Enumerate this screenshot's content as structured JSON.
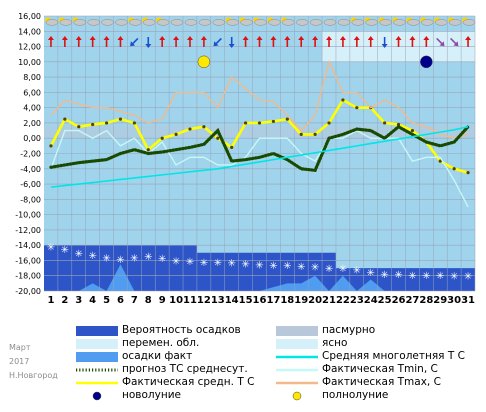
{
  "side_labels": {
    "month": "Март",
    "year": "2017",
    "city": "Н.Новгород"
  },
  "colors": {
    "plot_bg": "#9fd4ec",
    "sky_light": "#d6f0fa",
    "cloud": "#b8c8da",
    "precip_prob": "#2d55c8",
    "precip_fact": "#4f9cf0",
    "mean_line": "#00e6e6",
    "tmin_fact": "#c8f7f7",
    "tmax_fact": "#f2b98c",
    "avg_fact": "#ffff00",
    "forecast": "#4e9a06",
    "new_moon": "#00008b",
    "full_moon": "#ffe800",
    "wind_red": "#e01010",
    "wind_blue": "#1c4fd0",
    "wind_purple": "#8e4aa8"
  },
  "chart_data": {
    "type": "line",
    "x": [
      1,
      2,
      3,
      4,
      5,
      6,
      7,
      8,
      9,
      10,
      11,
      12,
      13,
      14,
      15,
      16,
      17,
      18,
      19,
      20,
      21,
      22,
      23,
      24,
      25,
      26,
      27,
      28,
      29,
      30,
      31
    ],
    "ylim": [
      -20,
      16
    ],
    "yticks": [
      "16,00",
      "14,00",
      "12,00",
      "10,00",
      "8,00",
      "6,00",
      "4,00",
      "2,00",
      "0,00",
      "-2,00",
      "-4,00",
      "-6,00",
      "-8,00",
      "-10,00",
      "-12,00",
      "-14,00",
      "-16,00",
      "-18,00",
      "-20,00"
    ],
    "series": [
      {
        "name": "Фактическая средн. Т С",
        "key": "avg_fact",
        "values": [
          -1.0,
          2.5,
          1.5,
          1.8,
          2.0,
          2.5,
          2.0,
          -1.5,
          0.0,
          0.5,
          1.2,
          1.5,
          0.0,
          -1.2,
          2.0,
          2.0,
          2.2,
          2.5,
          0.5,
          0.5,
          2.0,
          5.0,
          4.0,
          4.0,
          2.0,
          1.8,
          1.0,
          -0.5,
          -3.0,
          -4.0,
          -4.5
        ]
      },
      {
        "name": "Фактическая Tmax, C",
        "key": "tmax_fact",
        "values": [
          3.0,
          5.0,
          4.5,
          4.0,
          4.0,
          3.5,
          3.0,
          2.0,
          2.5,
          6.0,
          6.0,
          6.0,
          4.0,
          8.0,
          6.5,
          5.0,
          4.8,
          3.0,
          1.0,
          3.0,
          10.0,
          6.0,
          6.0,
          4.0,
          5.0,
          4.0,
          2.0,
          1.5,
          0.5,
          0.0,
          0.5
        ]
      },
      {
        "name": "Фактическая Tmin, C",
        "key": "tmin_fact",
        "values": [
          -4.0,
          1.0,
          1.0,
          0.0,
          1.0,
          -1.0,
          0.0,
          -2.0,
          -0.5,
          -3.5,
          -2.5,
          -2.5,
          -3.5,
          -3.5,
          -2.5,
          0.0,
          0.0,
          0.0,
          -2.0,
          -3.0,
          0.0,
          0.0,
          1.0,
          0.0,
          0.0,
          0.0,
          -3.0,
          -2.5,
          -2.5,
          -5.5,
          -9.0
        ]
      },
      {
        "name": "прогноз ТС среднесут.",
        "key": "forecast",
        "values": [
          -3.8,
          -3.5,
          -3.2,
          -3.0,
          -2.8,
          -2.0,
          -1.5,
          -2.0,
          -1.8,
          -1.5,
          -1.2,
          -0.8,
          1.0,
          -3.0,
          -2.8,
          -2.5,
          -2.0,
          -2.8,
          -4.0,
          -4.2,
          0.0,
          0.5,
          1.2,
          1.0,
          0.0,
          1.5,
          0.5,
          -0.5,
          -1.0,
          -0.5,
          1.5
        ]
      },
      {
        "name": "Средняя многолетняя Т С",
        "key": "mean_line",
        "values": [
          -6.4,
          -6.2,
          -6.0,
          -5.8,
          -5.6,
          -5.4,
          -5.2,
          -5.0,
          -4.8,
          -4.6,
          -4.4,
          -4.2,
          -4.0,
          -3.7,
          -3.4,
          -3.1,
          -2.8,
          -2.5,
          -2.2,
          -1.9,
          -1.6,
          -1.3,
          -1.0,
          -0.7,
          -0.4,
          -0.1,
          0.2,
          0.5,
          0.8,
          1.1,
          1.5
        ]
      }
    ],
    "precip_probability": [
      -14.0,
      -14.0,
      -14.0,
      -14.0,
      -14.0,
      -14.0,
      -14.0,
      -14.0,
      -14.0,
      -14.0,
      -14.0,
      -15.0,
      -15.0,
      -15.0,
      -15.0,
      -15.0,
      -15.0,
      -15.0,
      -15.0,
      -15.0,
      -15.0,
      -17.0,
      -17.0,
      -17.0,
      -17.0,
      -17.0,
      -17.0,
      -17.0,
      -17.0,
      -17.0,
      -17.0
    ],
    "precip_fact": [
      -20.0,
      -20.0,
      -20.0,
      -19.0,
      -20.0,
      -16.5,
      -20.0,
      -20.0,
      -20.0,
      -20.0,
      -20.0,
      -20.0,
      -20.0,
      -20.0,
      -20.0,
      -20.0,
      -19.5,
      -19.0,
      -19.0,
      -18.0,
      -20.0,
      -18.0,
      -20.0,
      -18.5,
      -20.0,
      -20.0,
      -20.0,
      -20.0,
      -20.0,
      -20.0,
      -20.0
    ],
    "precip_probability_marker": [
      -14.2,
      -14.5,
      -15.0,
      -15.3,
      -15.6,
      -15.8,
      -15.6,
      -15.4,
      -15.7,
      -16.0,
      -16.1,
      -16.2,
      -16.2,
      -16.3,
      -16.4,
      -16.5,
      -16.6,
      -16.6,
      -16.7,
      -16.8,
      -17.0,
      -17.0,
      -17.2,
      -17.5,
      -17.8,
      -17.8,
      -17.9,
      -17.9,
      -17.9,
      -18.0,
      -18.0
    ],
    "cloud_overcast": [
      0.0,
      0.0,
      0.0,
      0.0,
      0.0,
      0.0,
      0.0,
      0.0,
      0.0,
      0.0,
      0.0,
      0.0,
      0.0,
      0.0,
      0.0,
      0.0,
      0.0,
      0.0,
      0.0,
      0.0,
      0.0,
      0.0,
      0.0,
      0.0,
      0.0,
      0.0,
      0.0,
      0.0,
      0.0,
      0.0,
      0.0
    ],
    "sky_light_day_range": [
      21,
      31
    ],
    "moon_phases": [
      {
        "day": 12,
        "type": "full"
      },
      {
        "day": 28,
        "type": "new"
      }
    ],
    "wind_directions": [
      "N",
      "N",
      "N",
      "N",
      "N",
      "N",
      "SW",
      "S",
      "N",
      "N",
      "N",
      "N",
      "SW",
      "S",
      "N",
      "N",
      "N",
      "N",
      "N",
      "N",
      "N",
      "N",
      "N",
      "N",
      "S",
      "N",
      "N",
      "N",
      "SE",
      "SE",
      "N"
    ],
    "wind_colors": [
      "red",
      "red",
      "red",
      "red",
      "red",
      "red",
      "blue",
      "blue",
      "red",
      "red",
      "red",
      "red",
      "blue",
      "blue",
      "red",
      "red",
      "red",
      "red",
      "red",
      "red",
      "red",
      "red",
      "red",
      "red",
      "blue",
      "red",
      "red",
      "red",
      "purple",
      "purple",
      "red"
    ],
    "weather_icons": [
      "sun-cloud",
      "sun-cloud",
      "sun-cloud",
      "cloud",
      "cloud",
      "cloud",
      "sun-cloud",
      "sun-cloud",
      "sun-cloud",
      "cloud",
      "cloud",
      "cloud",
      "cloud",
      "sun-cloud",
      "sun-cloud",
      "sun-cloud",
      "sun-cloud",
      "sun-cloud",
      "cloud",
      "cloud",
      "cloud",
      "cloud",
      "sun-cloud",
      "sun-cloud",
      "sun-cloud",
      "sun-cloud",
      "sun-cloud",
      "sun-cloud",
      "sun-cloud",
      "sun-cloud",
      "sun-cloud"
    ],
    "legend": [
      {
        "label": "Вероятность осадков",
        "marker": "block",
        "color_key": "precip_prob"
      },
      {
        "label": "пасмурно",
        "marker": "block",
        "color_key": "cloud"
      },
      {
        "label": "перемен. обл.",
        "marker": "block",
        "color_key": "sky_light"
      },
      {
        "label": "ясно",
        "marker": "block",
        "color_key": "sky_light"
      },
      {
        "label": "осадки факт",
        "marker": "block",
        "color_key": "precip_fact"
      },
      {
        "label": "Средняя многолетняя Т С",
        "marker": "line",
        "color_key": "mean_line"
      },
      {
        "label": "прогноз ТС среднесут.",
        "marker": "dots",
        "color_key": "forecast"
      },
      {
        "label": "Фактическая Tmin, C",
        "marker": "line",
        "color_key": "tmin_fact"
      },
      {
        "label": "Фактическая средн. Т С",
        "marker": "line",
        "color_key": "avg_fact"
      },
      {
        "label": "Фактическая Tmax, C",
        "marker": "line",
        "color_key": "tmax_fact"
      },
      {
        "label": "новолуние",
        "marker": "circle",
        "color_key": "new_moon"
      },
      {
        "label": "полнолуние",
        "marker": "circle",
        "color_key": "full_moon"
      }
    ]
  }
}
